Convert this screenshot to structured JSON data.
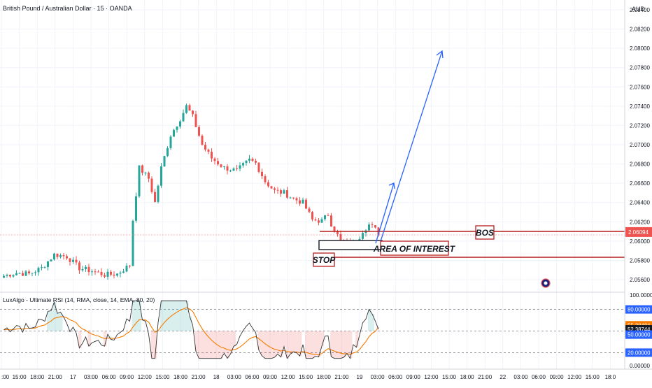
{
  "header": {
    "symbol_title": "British Pound / Australian Dollar · 15 · OANDA",
    "currency": "AUD"
  },
  "indicator": {
    "title": "LuxAlgo - Ultimate RSI (14, RMA, close, 14, EMA, 80, 20)"
  },
  "price_axis": {
    "ticks": [
      "2.08400",
      "2.08200",
      "2.08000",
      "2.07800",
      "2.07600",
      "2.07400",
      "2.07200",
      "2.07000",
      "2.06800",
      "2.06600",
      "2.06400",
      "2.06200",
      "2.06000",
      "2.05800",
      "2.05600"
    ],
    "current_price": "2.06094"
  },
  "rsi_axis": {
    "ticks": [
      "100.00000",
      "0.00000"
    ],
    "badges": [
      "80.00000",
      "55.28484",
      "52.38744",
      "50.00000",
      "20.00000"
    ]
  },
  "time_axis": {
    "ticks": [
      ":00",
      "15:00",
      "18:00",
      "21:00",
      "17",
      "03:00",
      "06:00",
      "09:00",
      "12:00",
      "15:00",
      "18:00",
      "21:00",
      "18",
      "03:00",
      "06:00",
      "09:00",
      "12:00",
      "15:00",
      "18:00",
      "21:00",
      "19",
      "03:00",
      "06:00",
      "09:00",
      "12:00",
      "15:00",
      "18:00",
      "21:00",
      "22",
      "03:00",
      "06:00",
      "09:00",
      "12:00",
      "15:00",
      "18:0"
    ]
  },
  "annotations": {
    "bos": "BOS",
    "area_of_interest": "AREA OF INTEREST",
    "stop": "STOP"
  },
  "colors": {
    "up": "#26a69a",
    "down": "#ef5350",
    "annotation": "#b71c1c",
    "arrow": "#2962ff",
    "rsi_line": "#333333",
    "rsi_signal": "#f57c00",
    "badge_blue": "#2962ff",
    "badge_orange": "#f57c00",
    "badge_black": "#131722"
  },
  "chart_data": {
    "type": "candlestick",
    "instrument": "British Pound / Australian Dollar",
    "timeframe": "15",
    "source": "OANDA",
    "y_range": [
      2.0545,
      2.0855
    ],
    "close_path": [
      [
        0,
        2.0564
      ],
      [
        4,
        2.0567
      ],
      [
        8,
        2.0566
      ],
      [
        12,
        2.0572
      ],
      [
        16,
        2.0586
      ],
      [
        20,
        2.0584
      ],
      [
        24,
        2.0572
      ],
      [
        28,
        2.0569
      ],
      [
        32,
        2.0565
      ],
      [
        36,
        2.0566
      ],
      [
        40,
        2.0575
      ],
      [
        41,
        2.0622
      ],
      [
        43,
        2.0676
      ],
      [
        46,
        2.0665
      ],
      [
        48,
        2.064
      ],
      [
        50,
        2.0676
      ],
      [
        53,
        2.071
      ],
      [
        56,
        2.0727
      ],
      [
        58,
        2.074
      ],
      [
        60,
        2.0729
      ],
      [
        63,
        2.07
      ],
      [
        66,
        2.0686
      ],
      [
        70,
        2.0676
      ],
      [
        74,
        2.0673
      ],
      [
        78,
        2.0684
      ],
      [
        80,
        2.0681
      ],
      [
        83,
        2.0662
      ],
      [
        86,
        2.0652
      ],
      [
        89,
        2.065
      ],
      [
        92,
        2.0644
      ],
      [
        95,
        2.064
      ],
      [
        98,
        2.0622
      ],
      [
        101,
        2.0621
      ],
      [
        103,
        2.0628
      ],
      [
        104,
        2.0618
      ],
      [
        107,
        2.06
      ],
      [
        110,
        2.0596
      ],
      [
        112,
        2.0599
      ],
      [
        114,
        2.0611
      ],
      [
        116,
        2.0617
      ],
      [
        118,
        2.0612
      ],
      [
        119,
        2.0608
      ]
    ],
    "levels": {
      "bos": 2.06094,
      "area_of_interest": [
        2.0592,
        2.0602
      ],
      "stop": 2.0584
    },
    "rsi": {
      "overbought": 80,
      "oversold": 20,
      "value": 52.38744,
      "signal": 55.28484
    }
  }
}
